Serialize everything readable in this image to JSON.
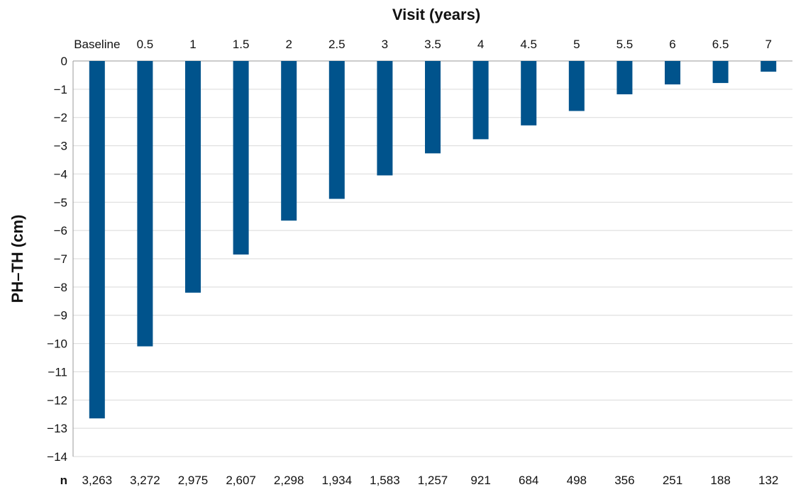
{
  "chart_data": {
    "type": "bar",
    "title": "",
    "xlabel": "Visit (years)",
    "ylabel": "PH–TH (cm)",
    "categories": [
      "Baseline",
      "0.5",
      "1",
      "1.5",
      "2",
      "2.5",
      "3",
      "3.5",
      "4",
      "4.5",
      "5",
      "5.5",
      "6",
      "6.5",
      "7"
    ],
    "values": [
      -12.65,
      -10.1,
      -8.2,
      -6.85,
      -5.65,
      -4.88,
      -4.05,
      -3.27,
      -2.77,
      -2.28,
      -1.77,
      -1.18,
      -0.83,
      -0.78,
      -0.38
    ],
    "ylim": [
      -14,
      0
    ],
    "yticks": [
      0,
      -1,
      -2,
      -3,
      -4,
      -5,
      -6,
      -7,
      -8,
      -9,
      -10,
      -11,
      -12,
      -13,
      -14
    ],
    "ytick_labels": [
      "0",
      "−1",
      "−2",
      "−3",
      "−4",
      "−5",
      "−6",
      "−7",
      "−8",
      "−9",
      "−10",
      "−11",
      "−12",
      "−13",
      "−14"
    ],
    "xaxis_position": "top",
    "grid": true,
    "bar_color": "#00538c",
    "n_row_label": "n",
    "n_values": [
      "3,263",
      "3,272",
      "2,975",
      "2,607",
      "2,298",
      "1,934",
      "1,583",
      "1,257",
      "921",
      "684",
      "498",
      "356",
      "251",
      "188",
      "132"
    ]
  }
}
